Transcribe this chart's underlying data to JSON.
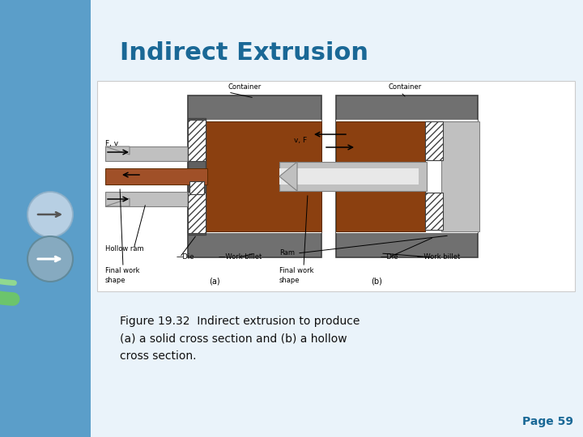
{
  "title": "Indirect Extrusion",
  "title_color": "#1A6896",
  "title_fontsize": 22,
  "caption_lines": [
    "Figure 19.32  Indirect extrusion to produce",
    "(a) a solid cross section and (b) a hollow",
    "cross section."
  ],
  "caption_fontsize": 10,
  "caption_color": "#111111",
  "page_label": "Page 59",
  "page_color": "#1A6896",
  "page_fontsize": 10,
  "gray_container": "#707070",
  "dark_gray": "#404040",
  "billet_color": "#8B4010",
  "ram_color": "#C0C0C0",
  "ram_dark": "#909090",
  "bg_left": "#5B9EC9",
  "bg_main": "#E0EEF8",
  "bg_top": "#C8DFF0",
  "green_color": "#5CB85C",
  "blue_arc": "#4AADE0"
}
